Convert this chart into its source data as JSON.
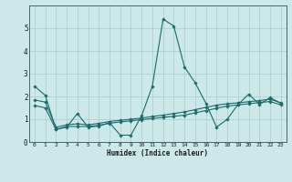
{
  "xlabel": "Humidex (Indice chaleur)",
  "xlim": [
    -0.5,
    23.5
  ],
  "ylim": [
    0,
    6
  ],
  "yticks": [
    0,
    1,
    2,
    3,
    4,
    5
  ],
  "xtick_labels": [
    "0",
    "1",
    "2",
    "3",
    "4",
    "5",
    "6",
    "7",
    "8",
    "9",
    "10",
    "11",
    "12",
    "13",
    "14",
    "15",
    "16",
    "17",
    "18",
    "19",
    "20",
    "21",
    "22",
    "23"
  ],
  "bg_color": "#cce8e8",
  "line_color": "#1a6b6b",
  "grid_color": "#aacaca",
  "line1": {
    "x": [
      0,
      1,
      2,
      3,
      4,
      5,
      6,
      7,
      8,
      9,
      10,
      11,
      12,
      13,
      14,
      15,
      16,
      17,
      18,
      19,
      20,
      21,
      22,
      23
    ],
    "y": [
      2.45,
      2.05,
      0.55,
      0.65,
      1.25,
      0.65,
      0.7,
      0.85,
      0.3,
      0.3,
      1.15,
      2.45,
      5.4,
      5.1,
      3.3,
      2.6,
      1.7,
      0.65,
      1.0,
      1.65,
      2.1,
      1.65,
      1.95,
      1.7
    ]
  },
  "line2": {
    "x": [
      0,
      1,
      2,
      3,
      4,
      5,
      6,
      7,
      8,
      9,
      10,
      11,
      12,
      13,
      14,
      15,
      16,
      17,
      18,
      19,
      20,
      21,
      22,
      23
    ],
    "y": [
      1.85,
      1.75,
      0.65,
      0.75,
      0.8,
      0.75,
      0.82,
      0.9,
      0.95,
      1.0,
      1.05,
      1.12,
      1.18,
      1.25,
      1.32,
      1.42,
      1.52,
      1.62,
      1.68,
      1.72,
      1.77,
      1.82,
      1.88,
      1.72
    ]
  },
  "line3": {
    "x": [
      0,
      1,
      2,
      3,
      4,
      5,
      6,
      7,
      8,
      9,
      10,
      11,
      12,
      13,
      14,
      15,
      16,
      17,
      18,
      19,
      20,
      21,
      22,
      23
    ],
    "y": [
      1.6,
      1.5,
      0.55,
      0.68,
      0.68,
      0.68,
      0.73,
      0.82,
      0.88,
      0.93,
      0.98,
      1.03,
      1.08,
      1.13,
      1.18,
      1.28,
      1.38,
      1.48,
      1.58,
      1.63,
      1.68,
      1.73,
      1.78,
      1.63
    ]
  }
}
